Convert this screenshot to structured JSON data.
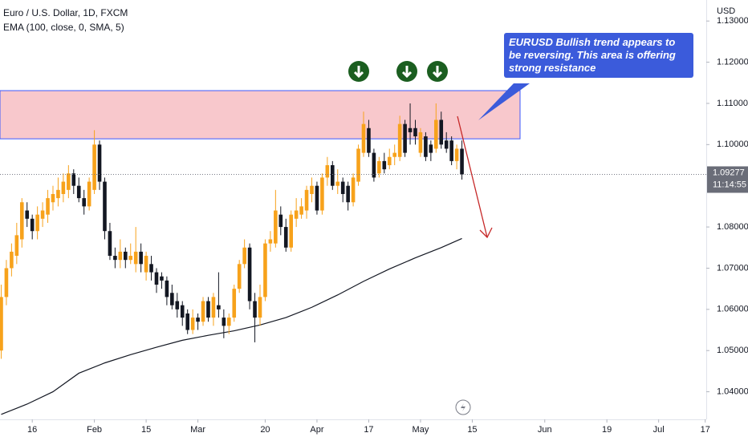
{
  "chart_data": {
    "type": "candlestick",
    "title": "Euro / U.S. Dollar, 1D, FXCM",
    "subtitle": "EMA (100, close, 0, SMA, 5)",
    "y_axis_label": "USD",
    "countdown": "11:14:55",
    "annotation": "EURUSD Bullish trend appears to be reversing. This area is offering strong resistance",
    "up_color": "#f7a21b",
    "down_color": "#131722",
    "open": [
      1.05,
      1.063,
      1.07,
      1.073,
      1.077,
      1.084,
      1.082,
      1.079,
      1.082,
      1.083,
      1.086,
      1.087,
      1.088,
      1.089,
      1.093,
      1.09,
      1.087,
      1.085,
      1.089,
      1.1,
      1.091,
      1.079,
      1.073,
      1.072,
      1.074,
      1.072,
      1.071,
      1.074,
      1.069,
      1.071,
      1.069,
      1.068,
      1.067,
      1.064,
      1.062,
      1.061,
      1.059,
      1.055,
      1.058,
      1.057,
      1.062,
      1.058,
      1.061,
      1.058,
      1.056,
      1.058,
      1.065,
      1.071,
      1.075,
      1.062,
      1.058,
      1.063,
      1.076,
      1.076,
      1.083,
      1.08,
      1.075,
      1.082,
      1.083,
      1.084,
      1.088,
      1.09,
      1.084,
      1.092,
      1.095,
      1.09,
      1.091,
      1.09,
      1.086,
      1.091,
      1.098,
      1.104,
      1.098,
      1.093,
      1.096,
      1.095,
      1.097,
      1.097,
      1.105,
      1.104,
      1.104,
      1.098,
      1.102,
      1.1,
      1.099,
      1.106,
      1.101,
      1.101,
      1.096,
      1.099
    ],
    "high": [
      1.066,
      1.072,
      1.076,
      1.081,
      1.087,
      1.086,
      1.083,
      1.085,
      1.086,
      1.089,
      1.09,
      1.092,
      1.093,
      1.095,
      1.094,
      1.092,
      1.089,
      1.092,
      1.1035,
      1.101,
      1.092,
      1.081,
      1.075,
      1.077,
      1.075,
      1.076,
      1.08,
      1.076,
      1.074,
      1.073,
      1.07,
      1.069,
      1.068,
      1.066,
      1.064,
      1.062,
      1.06,
      1.06,
      1.059,
      1.063,
      1.063,
      1.064,
      1.069,
      1.06,
      1.059,
      1.066,
      1.072,
      1.077,
      1.076,
      1.064,
      1.066,
      1.077,
      1.079,
      1.089,
      1.085,
      1.082,
      1.084,
      1.087,
      1.087,
      1.09,
      1.092,
      1.091,
      1.093,
      1.097,
      1.096,
      1.094,
      1.092,
      1.091,
      1.093,
      1.1,
      1.108,
      1.106,
      1.099,
      1.097,
      1.098,
      1.099,
      1.1,
      1.107,
      1.106,
      1.11,
      1.106,
      1.104,
      1.103,
      1.101,
      1.11,
      1.108,
      1.103,
      1.102,
      1.1,
      1.101
    ],
    "low": [
      1.048,
      1.061,
      1.068,
      1.071,
      1.075,
      1.08,
      1.077,
      1.077,
      1.08,
      1.081,
      1.084,
      1.085,
      1.086,
      1.087,
      1.088,
      1.086,
      1.083,
      1.084,
      1.088,
      1.089,
      1.077,
      1.072,
      1.07,
      1.07,
      1.07,
      1.071,
      1.069,
      1.069,
      1.067,
      1.067,
      1.064,
      1.065,
      1.061,
      1.06,
      1.058,
      1.056,
      1.054,
      1.054,
      1.055,
      1.056,
      1.057,
      1.056,
      1.058,
      1.053,
      1.054,
      1.057,
      1.064,
      1.07,
      1.06,
      1.052,
      1.056,
      1.062,
      1.074,
      1.075,
      1.078,
      1.074,
      1.074,
      1.08,
      1.082,
      1.082,
      1.086,
      1.083,
      1.083,
      1.09,
      1.089,
      1.088,
      1.086,
      1.084,
      1.085,
      1.09,
      1.097,
      1.097,
      1.091,
      1.092,
      1.093,
      1.094,
      1.095,
      1.096,
      1.097,
      1.1,
      1.1,
      1.097,
      1.096,
      1.096,
      1.098,
      1.099,
      1.098,
      1.095,
      1.094,
      1.0915
    ],
    "close": [
      1.063,
      1.07,
      1.074,
      1.078,
      1.086,
      1.082,
      1.079,
      1.083,
      1.084,
      1.087,
      1.088,
      1.089,
      1.091,
      1.093,
      1.09,
      1.087,
      1.085,
      1.091,
      1.1,
      1.091,
      1.079,
      1.073,
      1.072,
      1.074,
      1.072,
      1.073,
      1.074,
      1.071,
      1.073,
      1.069,
      1.066,
      1.067,
      1.063,
      1.061,
      1.06,
      1.058,
      1.055,
      1.058,
      1.057,
      1.062,
      1.058,
      1.063,
      1.06,
      1.056,
      1.058,
      1.065,
      1.071,
      1.075,
      1.062,
      1.058,
      1.063,
      1.076,
      1.077,
      1.084,
      1.08,
      1.075,
      1.083,
      1.084,
      1.085,
      1.089,
      1.09,
      1.084,
      1.092,
      1.095,
      1.09,
      1.091,
      1.088,
      1.086,
      1.092,
      1.099,
      1.105,
      1.098,
      1.092,
      1.096,
      1.094,
      1.097,
      1.098,
      1.105,
      1.098,
      1.103,
      1.102,
      1.103,
      1.097,
      1.098,
      1.106,
      1.1,
      1.099,
      1.096,
      1.099,
      1.09277
    ],
    "ema": {
      "color": "#131722",
      "x": [
        0,
        5,
        10,
        15,
        20,
        25,
        30,
        35,
        40,
        45,
        50,
        55,
        60,
        65,
        70,
        75,
        80,
        85,
        89
      ],
      "values": [
        1.0345,
        1.037,
        1.04,
        1.0445,
        1.047,
        1.049,
        1.0508,
        1.0525,
        1.0537,
        1.0548,
        1.0562,
        1.058,
        1.0605,
        1.0635,
        1.0668,
        1.0698,
        1.0725,
        1.075,
        1.0772
      ]
    },
    "zone": {
      "ylim": [
        1.1014,
        1.1131
      ],
      "color": "#f8c8cc",
      "border": "#3d5afe"
    },
    "xlim": [
      -0.23,
      136.2
    ],
    "ylim": [
      1.0333,
      1.1351
    ],
    "xticks": [
      {
        "value": 6,
        "label": "16"
      },
      {
        "value": 18,
        "label": "Feb"
      },
      {
        "value": 28,
        "label": "15"
      },
      {
        "value": 38,
        "label": "Mar"
      },
      {
        "value": 51,
        "label": "20"
      },
      {
        "value": 61,
        "label": "Apr"
      },
      {
        "value": 71,
        "label": "17"
      },
      {
        "value": 81,
        "label": "May"
      },
      {
        "value": 91,
        "label": "15"
      },
      {
        "value": 105,
        "label": "Jun"
      },
      {
        "value": 117,
        "label": "19"
      },
      {
        "value": 127,
        "label": "Jul"
      },
      {
        "value": 136,
        "label": "17"
      }
    ],
    "yticks": [
      {
        "value": 1.04,
        "label": "1.04000"
      },
      {
        "value": 1.05,
        "label": "1.05000"
      },
      {
        "value": 1.06,
        "label": "1.06000"
      },
      {
        "value": 1.07,
        "label": "1.07000"
      },
      {
        "value": 1.08,
        "label": "1.08000"
      },
      {
        "value": 1.1,
        "label": "1.10000"
      },
      {
        "value": 1.11,
        "label": "1.11000"
      },
      {
        "value": 1.12,
        "label": "1.12000"
      },
      {
        "value": 1.13,
        "label": "1.13000"
      }
    ]
  }
}
